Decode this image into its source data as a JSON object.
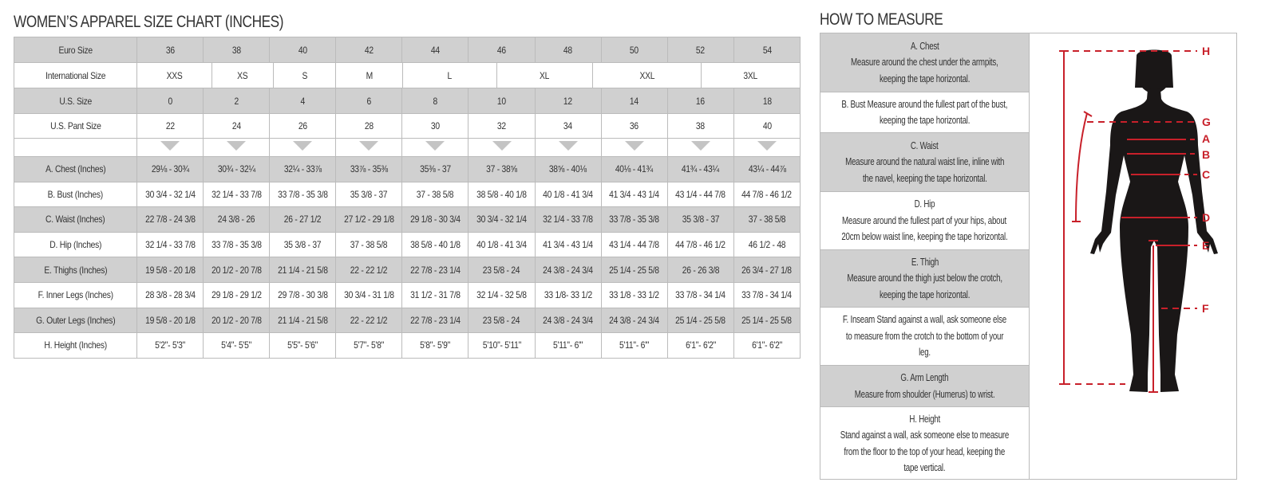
{
  "size_chart": {
    "title": "WOMEN’S APPAREL SIZE CHART (INCHES)",
    "euro": {
      "label": "Euro Size",
      "values": [
        "36",
        "38",
        "40",
        "42",
        "44",
        "46",
        "48",
        "50",
        "52",
        "54"
      ]
    },
    "international": {
      "label": "International Size",
      "values": [
        "XXS",
        "XS",
        "S",
        "M",
        "L",
        "XL",
        "XXL",
        "3XL"
      ]
    },
    "us": {
      "label": "U.S. Size",
      "values": [
        "0",
        "2",
        "4",
        "6",
        "8",
        "10",
        "12",
        "14",
        "16",
        "18"
      ]
    },
    "us_pant": {
      "label": "U.S. Pant Size",
      "values": [
        "22",
        "24",
        "26",
        "28",
        "30",
        "32",
        "34",
        "36",
        "38",
        "40"
      ]
    },
    "measurements": [
      {
        "label": "A. Chest (Inches)",
        "values": [
          "29⅛ - 30¾",
          "30¾ - 32¼",
          "32¼ - 33⅞",
          "33⅞ - 35⅜",
          "35⅜ - 37",
          "37 - 38⅝",
          "38⅝ - 40⅛",
          "40⅛ - 41¾",
          "41¾ - 43¼",
          "43¼ - 44⅞"
        ]
      },
      {
        "label": "B. Bust (Inches)",
        "values": [
          "30 3/4 - 32 1/4",
          "32 1/4 - 33 7/8",
          "33 7/8 - 35 3/8",
          "35 3/8 - 37",
          "37 - 38 5/8",
          "38 5/8 - 40 1/8",
          "40 1/8 - 41 3/4",
          "41 3/4 - 43 1/4",
          "43 1/4 - 44 7/8",
          "44 7/8 - 46 1/2"
        ]
      },
      {
        "label": "C. Waist (Inches)",
        "values": [
          "22 7/8 - 24 3/8",
          "24 3/8 - 26",
          "26 - 27 1/2",
          "27 1/2 - 29 1/8",
          "29 1/8 - 30 3/4",
          "30 3/4 - 32 1/4",
          "32 1/4 - 33 7/8",
          "33 7/8 - 35 3/8",
          "35 3/8 - 37",
          "37 - 38 5/8"
        ]
      },
      {
        "label": "D. Hip (Inches)",
        "values": [
          "32 1/4 - 33 7/8",
          "33 7/8 - 35 3/8",
          "35 3/8 - 37",
          "37 - 38 5/8",
          "38 5/8 - 40 1/8",
          "40 1/8 - 41 3/4",
          "41 3/4 - 43 1/4",
          "43 1/4 - 44 7/8",
          "44 7/8 - 46 1/2",
          "46 1/2 - 48"
        ]
      },
      {
        "label": "E. Thighs (Inches)",
        "values": [
          "19 5/8 - 20 1/8",
          "20 1/2 - 20 7/8",
          "21 1/4 - 21 5/8",
          "22 - 22 1/2",
          "22 7/8 - 23 1/4",
          "23 5/8 - 24",
          "24 3/8 - 24 3/4",
          "25 1/4 - 25 5/8",
          "26 - 26 3/8",
          "26 3/4 - 27 1/8"
        ]
      },
      {
        "label": "F. Inner Legs (Inches)",
        "values": [
          "28 3/8 - 28 3/4",
          "29 1/8 - 29 1/2",
          "29 7/8 - 30 3/8",
          "30 3/4 - 31 1/8",
          "31 1/2 - 31 7/8",
          "32 1/4 - 32 5/8",
          "33 1/8- 33 1/2",
          "33 1/8 - 33 1/2",
          "33 7/8 - 34 1/4",
          "33 7/8 - 34 1/4"
        ]
      },
      {
        "label": "G. Outer Legs (Inches)",
        "values": [
          "19 5/8 - 20 1/8",
          "20 1/2 - 20 7/8",
          "21 1/4 - 21 5/8",
          "22 - 22 1/2",
          "22 7/8 - 23 1/4",
          "23 5/8 - 24",
          "24 3/8 - 24 3/4",
          "24 3/8 - 24 3/4",
          "25 1/4 - 25 5/8",
          "25 1/4 - 25 5/8"
        ]
      },
      {
        "label": "H. Height (Inches)",
        "values": [
          "5'2\"- 5'3\"",
          "5'4\"- 5'5\"",
          "5'5\"- 5'6\"",
          "5'7\"- 5'8\"",
          "5'8\"- 5'9\"",
          "5'10\"- 5'11\"",
          "5'11\"- 6'\"",
          "5'11\"- 6'\"",
          "6'1\"- 6'2\"",
          "6'1\"- 6'2\""
        ]
      }
    ]
  },
  "how_to_measure": {
    "title": "HOW TO MEASURE",
    "items": [
      {
        "lines": [
          "A. Chest",
          "Measure around the chest under the armpits,",
          "keeping the tape horizontal."
        ]
      },
      {
        "lines": [
          "B. Bust Measure around the fullest part of the bust,",
          "keeping the tape horizontal."
        ]
      },
      {
        "lines": [
          "C. Waist",
          "Measure around the natural waist line, inline with",
          "the navel, keeping the tape horizontal."
        ]
      },
      {
        "lines": [
          "D. Hip",
          "Measure around the fullest part of your hips, about",
          "20cm below waist line, keeping the tape horizontal."
        ]
      },
      {
        "lines": [
          "E. Thigh",
          "Measure around the thigh just below the crotch,",
          "keeping the tape horizontal."
        ]
      },
      {
        "lines": [
          "F. Inseam Stand against a wall, ask someone else",
          "to measure from the crotch to the bottom of your",
          "leg."
        ]
      },
      {
        "lines": [
          "G. Arm Length",
          "Measure from shoulder (Humerus) to wrist."
        ]
      },
      {
        "lines": [
          "H. Height",
          "Stand against a wall, ask someone else to measure",
          "from the floor to the top of your head, keeping the",
          "tape vertical."
        ]
      }
    ],
    "figure_labels": {
      "H": "H",
      "G": "G",
      "A": "A",
      "B": "B",
      "C": "C",
      "D": "D",
      "E": "E",
      "F": "F"
    }
  },
  "colors": {
    "header_gray": "#d0d0d0",
    "measure_red": "#c8202a",
    "silhouette": "#1a1717"
  }
}
